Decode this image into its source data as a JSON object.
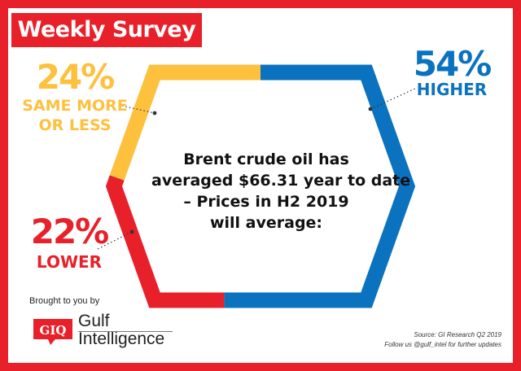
{
  "header": {
    "title": "Weekly Survey"
  },
  "chart_data": {
    "type": "pie",
    "title": "",
    "question": [
      "Brent crude oil has",
      "averaged $66.31 year to date",
      "– Prices in H2 2019",
      "will average:"
    ],
    "slices": [
      {
        "name": "HIGHER",
        "value": 54,
        "label": "54%",
        "color": "#0a72bf"
      },
      {
        "name": "LOWER",
        "value": 22,
        "label": "22%",
        "color": "#e8202a"
      },
      {
        "name": "SAME MORE OR LESS",
        "value": 24,
        "label": "24%",
        "color": "#fdc13e"
      }
    ]
  },
  "labels": {
    "higher": {
      "pct": "54%",
      "line1": "HIGHER"
    },
    "lower": {
      "pct": "22%",
      "line1": "LOWER"
    },
    "same": {
      "pct": "24%",
      "line1": "SAME MORE",
      "line2": "OR LESS"
    }
  },
  "footer": {
    "brought": "Brought to you by",
    "logo_mark": "GIQ",
    "logo_line1": "Gulf",
    "logo_line2": "Intelligence",
    "source": "Source: GI Research Q2 2019",
    "follow": "Follow us @gulf_intel for further updates"
  },
  "colors": {
    "red": "#e8202a",
    "blue": "#0a72bf",
    "yellow": "#fdc13e",
    "text": "#111111"
  }
}
